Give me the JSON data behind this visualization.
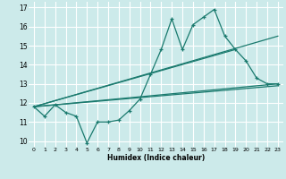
{
  "xlabel": "Humidex (Indice chaleur)",
  "bg_color": "#cceaea",
  "grid_color": "#ffffff",
  "line_color": "#1a7a6e",
  "xlim": [
    -0.5,
    23.5
  ],
  "ylim": [
    9.7,
    17.3
  ],
  "yticks": [
    10,
    11,
    12,
    13,
    14,
    15,
    16,
    17
  ],
  "xticks": [
    0,
    1,
    2,
    3,
    4,
    5,
    6,
    7,
    8,
    9,
    10,
    11,
    12,
    13,
    14,
    15,
    16,
    17,
    18,
    19,
    20,
    21,
    22,
    23
  ],
  "series1_x": [
    0,
    1,
    2,
    3,
    4,
    5,
    6,
    7,
    8,
    9,
    10,
    11,
    12,
    13,
    14,
    15,
    16,
    17,
    18,
    19,
    20,
    21,
    22,
    23
  ],
  "series1_y": [
    11.8,
    11.3,
    11.9,
    11.5,
    11.3,
    9.9,
    11.0,
    11.0,
    11.1,
    11.6,
    12.2,
    13.5,
    14.8,
    16.4,
    14.8,
    16.1,
    16.5,
    16.9,
    15.5,
    14.8,
    14.2,
    13.3,
    13.0,
    13.0
  ],
  "series2_x": [
    0,
    19
  ],
  "series2_y": [
    11.8,
    14.8
  ],
  "series3_x": [
    0,
    23
  ],
  "series3_y": [
    11.8,
    15.5
  ],
  "series4_x": [
    0,
    23
  ],
  "series4_y": [
    11.8,
    13.0
  ],
  "series5_x": [
    0,
    23
  ],
  "series5_y": [
    11.8,
    12.9
  ]
}
